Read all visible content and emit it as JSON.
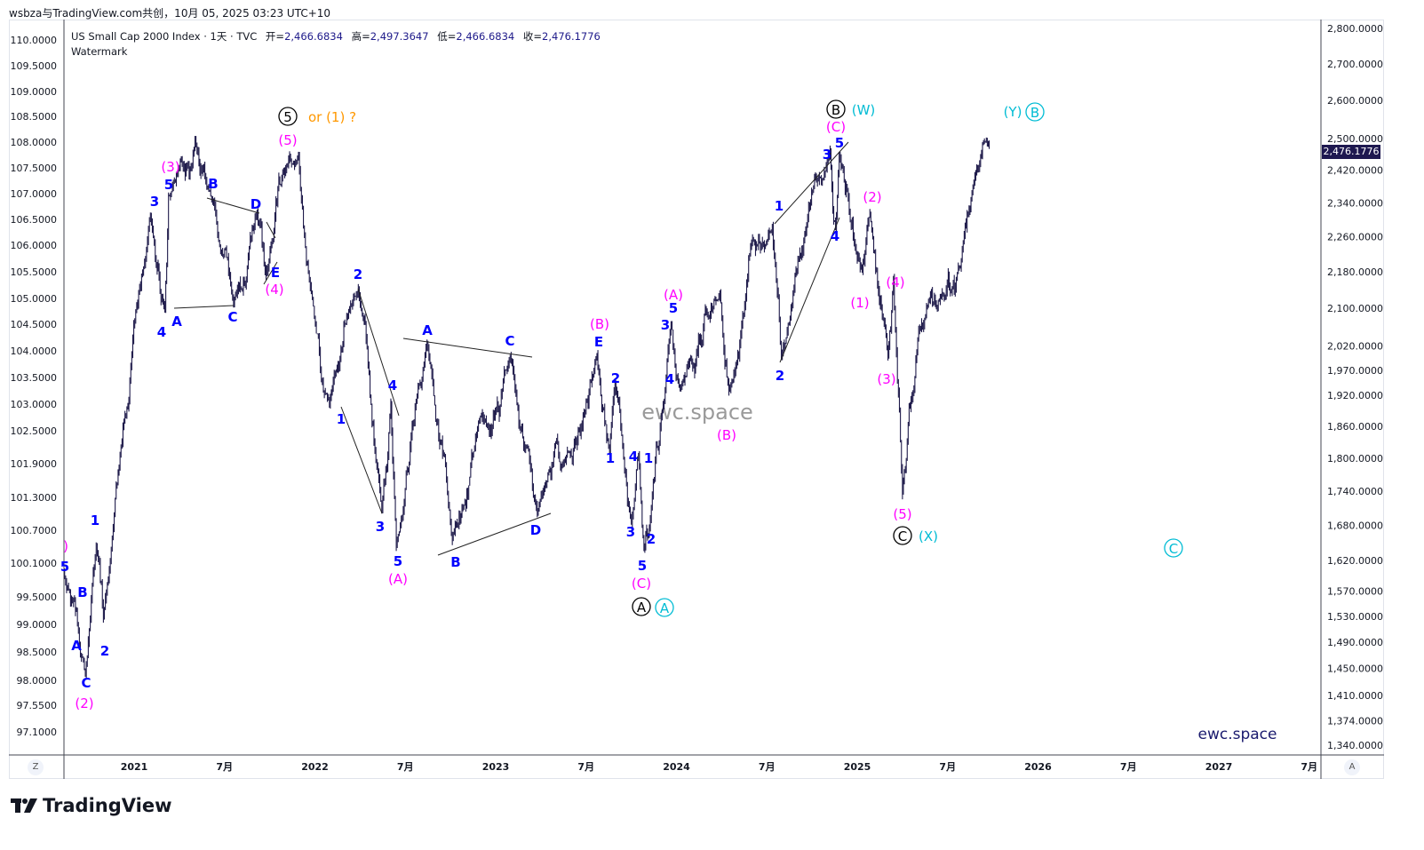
{
  "credit": "wsbza与TradingView.com共创，10月 05, 2025 03:23 UTC+10",
  "legend": {
    "symbol": "US Small Cap 2000 Index · 1天 · TVC",
    "open_label": "开=",
    "open": "2,466.6834",
    "high_label": "高=",
    "high": "2,497.3647",
    "low_label": "低=",
    "low": "2,466.6834",
    "close_label": "收=",
    "close": "2,476.1776",
    "watermark_line": "Watermark"
  },
  "last_price_label": "2,476.1776",
  "corner_buttons": {
    "left": "Z",
    "right": "A"
  },
  "logo_text": "TradingView",
  "colors": {
    "bars": "#1e1a4a",
    "wave_blue": "#0000ff",
    "wave_magenta": "#ff00ff",
    "wave_cyan": "#00bcd4",
    "wave_black": "#000000",
    "note_orange": "#ff9800",
    "last_price_bg": "#1e1850"
  },
  "chart_data": {
    "type": "line",
    "title": "US Small Cap 2000 Index · 1天 · TVC",
    "scale": "log",
    "ylim": [
      1340,
      2800
    ],
    "xlim": [
      2020.61,
      2027.65
    ],
    "right_axis_ticks": [
      "2,800.0000",
      "2,700.0000",
      "2,600.0000",
      "2,500.0000",
      "2,420.0000",
      "2,340.0000",
      "2,260.0000",
      "2,180.0000",
      "2,100.0000",
      "2,020.0000",
      "1,970.0000",
      "1,920.0000",
      "1,860.0000",
      "1,800.0000",
      "1,740.0000",
      "1,680.0000",
      "1,620.0000",
      "1,570.0000",
      "1,530.0000",
      "1,490.0000",
      "1,450.0000",
      "1,410.0000",
      "1,374.0000",
      "1,340.0000"
    ],
    "left_axis_ticks": [
      "110.0000",
      "109.5000",
      "109.0000",
      "108.5000",
      "108.0000",
      "107.5000",
      "107.0000",
      "106.5000",
      "106.0000",
      "105.5000",
      "105.0000",
      "104.5000",
      "104.0000",
      "103.5000",
      "103.0000",
      "102.5000",
      "101.9000",
      "101.3000",
      "100.7000",
      "100.1000",
      "99.5000",
      "99.0000",
      "98.5000",
      "98.0000",
      "97.5500",
      "97.1000"
    ],
    "time_ticks": [
      {
        "label": "2021",
        "t": 2021.0
      },
      {
        "label": "7月",
        "t": 2021.5
      },
      {
        "label": "2022",
        "t": 2022.0
      },
      {
        "label": "7月",
        "t": 2022.5
      },
      {
        "label": "2023",
        "t": 2023.0
      },
      {
        "label": "7月",
        "t": 2023.5
      },
      {
        "label": "2024",
        "t": 2024.0
      },
      {
        "label": "7月",
        "t": 2024.5
      },
      {
        "label": "2025",
        "t": 2025.0
      },
      {
        "label": "7月",
        "t": 2025.5
      },
      {
        "label": "2026",
        "t": 2026.0
      },
      {
        "label": "7月",
        "t": 2026.5
      },
      {
        "label": "2027",
        "t": 2027.0
      },
      {
        "label": "7月",
        "t": 2027.5
      }
    ],
    "swing_points": [
      [
        2020.61,
        1600
      ],
      [
        2020.73,
        1440
      ],
      [
        2020.79,
        1645
      ],
      [
        2020.83,
        1529
      ],
      [
        2021.09,
        2315
      ],
      [
        2021.17,
        2094
      ],
      [
        2021.19,
        2357
      ],
      [
        2021.44,
        2346
      ],
      [
        2021.55,
        2113
      ],
      [
        2021.68,
        2315
      ],
      [
        2021.73,
        2171
      ],
      [
        2021.86,
        2456
      ],
      [
        2021.98,
        2132
      ],
      [
        2022.08,
        1903
      ],
      [
        2022.24,
        2140
      ],
      [
        2022.37,
        1704
      ],
      [
        2022.42,
        1903
      ],
      [
        2022.45,
        1645
      ],
      [
        2022.62,
        2029
      ],
      [
        2022.76,
        1655
      ],
      [
        2022.91,
        1876
      ],
      [
        2023.08,
        2000
      ],
      [
        2023.23,
        1704
      ],
      [
        2023.38,
        1791
      ],
      [
        2023.56,
        2000
      ],
      [
        2023.63,
        1808
      ],
      [
        2023.66,
        1948
      ],
      [
        2023.75,
        1682
      ],
      [
        2023.79,
        1808
      ],
      [
        2023.82,
        1636
      ],
      [
        2023.85,
        1672
      ],
      [
        2023.97,
        2066
      ],
      [
        2024.02,
        1929
      ],
      [
        2024.24,
        2132
      ],
      [
        2024.29,
        1929
      ],
      [
        2024.53,
        2282
      ],
      [
        2024.58,
        2000
      ],
      [
        2024.85,
        2468
      ],
      [
        2024.88,
        2282
      ],
      [
        2024.9,
        2456
      ],
      [
        2025.0,
        2210
      ],
      [
        2025.07,
        2315
      ],
      [
        2025.17,
        2000
      ],
      [
        2025.2,
        2163
      ],
      [
        2025.25,
        1735
      ],
      [
        2025.34,
        2056
      ],
      [
        2025.47,
        2132
      ],
      [
        2025.57,
        2190
      ],
      [
        2025.64,
        2379
      ],
      [
        2025.73,
        2489
      ]
    ],
    "annotations": [
      {
        "text": ")",
        "color": "magenta"
      },
      {
        "text": "5",
        "color": "blue"
      },
      {
        "text": "(2)",
        "color": "magenta"
      },
      {
        "text": "A",
        "color": "blue"
      },
      {
        "text": "B",
        "color": "blue"
      },
      {
        "text": "C",
        "color": "blue"
      },
      {
        "text": "2",
        "color": "blue"
      },
      {
        "text": "1",
        "color": "blue"
      },
      {
        "text": "(3)",
        "color": "magenta"
      },
      {
        "text": "3",
        "color": "blue"
      },
      {
        "text": "5",
        "color": "blue"
      },
      {
        "text": "4",
        "color": "blue"
      },
      {
        "text": "A",
        "color": "blue"
      },
      {
        "text": "B",
        "color": "blue"
      },
      {
        "text": "C",
        "color": "blue"
      },
      {
        "text": "D",
        "color": "blue"
      },
      {
        "text": "E",
        "color": "blue"
      },
      {
        "text": "(4)",
        "color": "magenta"
      },
      {
        "text": "(5)",
        "color": "magenta"
      },
      {
        "text": "or (1) ?",
        "color": "orange"
      },
      {
        "text": "1",
        "color": "blue"
      },
      {
        "text": "2",
        "color": "blue"
      },
      {
        "text": "3",
        "color": "blue"
      },
      {
        "text": "4",
        "color": "blue"
      },
      {
        "text": "5",
        "color": "blue"
      },
      {
        "text": "(A)",
        "color": "magenta"
      },
      {
        "text": "A",
        "color": "blue"
      },
      {
        "text": "B",
        "color": "blue"
      },
      {
        "text": "C",
        "color": "blue"
      },
      {
        "text": "D",
        "color": "blue"
      },
      {
        "text": "E",
        "color": "blue"
      },
      {
        "text": "(B)",
        "color": "magenta"
      },
      {
        "text": "1",
        "color": "blue"
      },
      {
        "text": "2",
        "color": "blue"
      },
      {
        "text": "3",
        "color": "blue"
      },
      {
        "text": "4",
        "color": "blue"
      },
      {
        "text": "1",
        "color": "blue"
      },
      {
        "text": "2",
        "color": "blue"
      },
      {
        "text": "5",
        "color": "blue"
      },
      {
        "text": "(C)",
        "color": "magenta"
      },
      {
        "text": "(A)",
        "color": "magenta"
      },
      {
        "text": "5",
        "color": "blue"
      },
      {
        "text": "3",
        "color": "blue"
      },
      {
        "text": "4",
        "color": "blue"
      },
      {
        "text": "(B)",
        "color": "magenta"
      },
      {
        "text": "1",
        "color": "blue"
      },
      {
        "text": "2",
        "color": "blue"
      },
      {
        "text": "3",
        "color": "blue"
      },
      {
        "text": "5",
        "color": "blue"
      },
      {
        "text": "4",
        "color": "blue"
      },
      {
        "text": "(C)",
        "color": "magenta"
      },
      {
        "text": "(W)",
        "color": "cyan"
      },
      {
        "text": "(2)",
        "color": "magenta"
      },
      {
        "text": "(1)",
        "color": "magenta"
      },
      {
        "text": "(4)",
        "color": "magenta"
      },
      {
        "text": "(3)",
        "color": "magenta"
      },
      {
        "text": "(5)",
        "color": "magenta"
      },
      {
        "text": "(X)",
        "color": "cyan"
      },
      {
        "text": "(Y)",
        "color": "cyan"
      }
    ],
    "circled_labels": [
      {
        "text": "5",
        "color": "black"
      },
      {
        "text": "A",
        "color": "black"
      },
      {
        "text": "A",
        "color": "cyan"
      },
      {
        "text": "B",
        "color": "black"
      },
      {
        "text": "C",
        "color": "black"
      },
      {
        "text": "B",
        "color": "cyan"
      },
      {
        "text": "C",
        "color": "cyan"
      }
    ],
    "watermarks": [
      "ewc.space",
      "ewc.space"
    ]
  }
}
